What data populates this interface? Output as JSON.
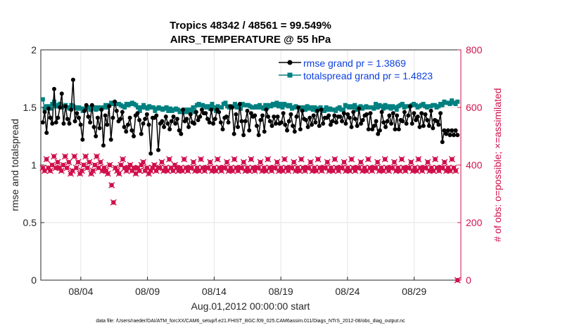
{
  "chart_data": {
    "type": "line",
    "title": "Tropics 48342 / 48561 = 99.549%",
    "subtitle": "AIRS_TEMPERATURE @ 55 hPa",
    "xlabel": "Aug.01,2012 00:00:00 start",
    "ylabel_left": "rmse and totalspread",
    "ylabel_right": "# of obs: o=possible; ×=assimilated",
    "footnote": "data file: /Users/raeder/DAI/ATM_forcXX/CAM6_setup/f.e21.FHIST_BGC.f09_025.CAM6assim.011/Diags_NTrS_2012-08/obs_diag_output.nc",
    "xlim": [
      0,
      31.5
    ],
    "ylim_left": [
      0,
      2
    ],
    "ylim_right": [
      0,
      800
    ],
    "x_ticks": [
      3,
      8,
      13,
      18,
      23,
      28
    ],
    "x_tick_labels": [
      "08/04",
      "08/09",
      "08/14",
      "08/19",
      "08/24",
      "08/29"
    ],
    "y_ticks_left": [
      0,
      0.5,
      1,
      1.5,
      2
    ],
    "y_tick_labels_left": [
      "0",
      "0.5",
      "1",
      "1.5",
      "2"
    ],
    "y_ticks_right": [
      0,
      200,
      400,
      600,
      800
    ],
    "y_tick_labels_right": [
      "0",
      "200",
      "400",
      "600",
      "800"
    ],
    "grid": true,
    "legend_position": "top-right",
    "colors": {
      "rmse": "#000000",
      "totalspread": "#008080",
      "obs": "#d0104c",
      "legend_text": "#0b3fe0",
      "right_axis": "#d0104c"
    },
    "series": [
      {
        "name": "rmse grand pr = 1.3869",
        "axis": "left",
        "values": [
          1.37,
          1.46,
          1.28,
          1.49,
          1.41,
          1.36,
          1.66,
          1.37,
          1.41,
          1.5,
          1.62,
          1.36,
          1.51,
          1.4,
          1.36,
          1.48,
          1.74,
          1.38,
          1.45,
          1.41,
          1.35,
          1.22,
          1.47,
          1.52,
          1.42,
          1.37,
          1.52,
          1.33,
          1.25,
          1.41,
          1.32,
          1.48,
          1.17,
          1.43,
          1.35,
          1.51,
          1.22,
          1.41,
          1.55,
          1.47,
          1.38,
          1.4,
          1.46,
          1.33,
          1.29,
          1.35,
          1.41,
          1.3,
          1.25,
          1.43,
          1.45,
          1.39,
          1.27,
          1.36,
          1.4,
          1.44,
          1.35,
          1.1,
          1.41,
          1.41,
          1.43,
          1.13,
          1.36,
          1.38,
          1.33,
          1.42,
          1.36,
          1.31,
          1.38,
          1.42,
          1.36,
          1.4,
          1.3,
          1.27,
          1.48,
          1.38,
          1.4,
          1.33,
          1.44,
          1.37,
          1.36,
          1.46,
          1.39,
          1.42,
          1.48,
          1.45,
          1.45,
          1.4,
          1.37,
          1.48,
          1.36,
          1.4,
          1.48,
          1.46,
          1.37,
          1.31,
          1.41,
          1.42,
          1.37,
          1.51,
          1.5,
          1.27,
          1.44,
          1.33,
          1.53,
          1.38,
          1.26,
          1.38,
          1.47,
          1.3,
          1.45,
          1.42,
          1.43,
          1.34,
          1.26,
          1.39,
          1.43,
          1.29,
          1.48,
          1.42,
          1.38,
          1.34,
          1.42,
          1.36,
          1.42,
          1.36,
          1.37,
          1.45,
          1.35,
          1.3,
          1.38,
          1.44,
          1.34,
          1.29,
          1.42,
          1.5,
          1.31,
          1.47,
          1.4,
          1.39,
          1.33,
          1.41,
          1.35,
          1.43,
          1.37,
          1.47,
          1.34,
          1.48,
          1.36,
          1.41,
          1.41,
          1.43,
          1.35,
          1.38,
          1.43,
          1.37,
          1.42,
          1.42,
          1.38,
          1.45,
          1.36,
          1.44,
          1.41,
          1.33,
          1.46,
          1.4,
          1.34,
          1.49,
          1.36,
          1.39,
          1.43,
          1.44,
          1.31,
          1.45,
          1.31,
          1.34,
          1.38,
          1.27,
          1.3,
          1.46,
          1.37,
          1.33,
          1.38,
          1.43,
          1.36,
          1.45,
          1.31,
          1.43,
          1.31,
          1.39,
          1.38,
          1.46,
          1.36,
          1.43,
          1.51,
          1.36,
          1.45,
          1.39,
          1.42,
          1.33,
          1.45,
          1.34,
          1.44,
          1.39,
          1.34,
          1.47,
          1.32,
          1.39,
          1.38,
          1.35,
          1.45,
          1.2,
          1.3,
          1.27,
          1.3,
          1.26,
          1.3,
          1.26,
          1.3,
          1.26
        ]
      },
      {
        "name": "totalspread grand pr = 1.4823",
        "axis": "left",
        "values": [
          1.57,
          1.49,
          1.51,
          1.51,
          1.49,
          1.53,
          1.55,
          1.51,
          1.52,
          1.53,
          1.5,
          1.51,
          1.52,
          1.5,
          1.49,
          1.52,
          1.51,
          1.5,
          1.49,
          1.5,
          1.49,
          1.47,
          1.49,
          1.5,
          1.5,
          1.48,
          1.49,
          1.5,
          1.48,
          1.5,
          1.49,
          1.5,
          1.5,
          1.52,
          1.5,
          1.52,
          1.54,
          1.53,
          1.53,
          1.53,
          1.53,
          1.52,
          1.51,
          1.5,
          1.53,
          1.52,
          1.53,
          1.54,
          1.53,
          1.52,
          1.5,
          1.47,
          1.5,
          1.52,
          1.5,
          1.49,
          1.51,
          1.5,
          1.5,
          1.47,
          1.49,
          1.5,
          1.49,
          1.48,
          1.49,
          1.5,
          1.47,
          1.49,
          1.47,
          1.48,
          1.49,
          1.48,
          1.46,
          1.47,
          1.46,
          1.48,
          1.46,
          1.48,
          1.47,
          1.5,
          1.46,
          1.52,
          1.53,
          1.52,
          1.52,
          1.51,
          1.5,
          1.51,
          1.49,
          1.53,
          1.5,
          1.47,
          1.51,
          1.5,
          1.5,
          1.53,
          1.54,
          1.51,
          1.5,
          1.5,
          1.51,
          1.53,
          1.5,
          1.51,
          1.49,
          1.53,
          1.52,
          1.52,
          1.52,
          1.51,
          1.5,
          1.5,
          1.51,
          1.5,
          1.52,
          1.5,
          1.49,
          1.52,
          1.5,
          1.52,
          1.51,
          1.53,
          1.52,
          1.54,
          1.51,
          1.53,
          1.5,
          1.53,
          1.52,
          1.51,
          1.52,
          1.49,
          1.5,
          1.51,
          1.5,
          1.5,
          1.49,
          1.5,
          1.48,
          1.51,
          1.49,
          1.5,
          1.48,
          1.5,
          1.47,
          1.49,
          1.5,
          1.48,
          1.47,
          1.5,
          1.48,
          1.49,
          1.48,
          1.48,
          1.47,
          1.49,
          1.5,
          1.48,
          1.48,
          1.52,
          1.51,
          1.5,
          1.51,
          1.5,
          1.52,
          1.48,
          1.5,
          1.51,
          1.49,
          1.5,
          1.51,
          1.5,
          1.5,
          1.5,
          1.49,
          1.53,
          1.5,
          1.52,
          1.51,
          1.49,
          1.52,
          1.5,
          1.51,
          1.49,
          1.51,
          1.5,
          1.48,
          1.51,
          1.52,
          1.53,
          1.5,
          1.51,
          1.51,
          1.51,
          1.52,
          1.53,
          1.52,
          1.5,
          1.51,
          1.52,
          1.53,
          1.51,
          1.5,
          1.51,
          1.51,
          1.52,
          1.52,
          1.5,
          1.51,
          1.53,
          1.52,
          1.55,
          1.54,
          1.54,
          1.53,
          1.56,
          1.54,
          1.53,
          1.55
        ]
      },
      {
        "name": "# of obs",
        "axis": "right",
        "values": [
          390,
          380,
          420,
          390,
          380,
          400,
          430,
          390,
          410,
          390,
          380,
          400,
          430,
          390,
          410,
          370,
          380,
          430,
          390,
          410,
          370,
          380,
          400,
          430,
          390,
          410,
          370,
          380,
          400,
          430,
          390,
          410,
          380,
          390,
          380,
          370,
          400,
          330,
          270,
          390,
          380,
          370,
          400,
          420,
          390,
          380,
          390,
          400,
          380,
          390,
          370,
          390,
          380,
          400,
          410,
          380,
          390,
          370,
          380,
          390,
          400,
          380,
          390,
          390,
          410,
          380,
          390,
          380,
          420,
          390,
          380,
          400,
          390,
          380,
          390,
          380,
          420,
          390,
          380,
          390,
          390,
          410,
          380,
          390,
          380,
          420,
          390,
          380,
          390,
          390,
          410,
          380,
          390,
          380,
          420,
          390,
          380,
          390,
          390,
          410,
          380,
          390,
          380,
          420,
          390,
          380,
          390,
          390,
          410,
          380,
          390,
          380,
          420,
          390,
          380,
          390,
          390,
          410,
          380,
          390,
          380,
          420,
          390,
          380,
          390,
          390,
          410,
          380,
          390,
          380,
          420,
          390,
          380,
          390,
          390,
          410,
          380,
          390,
          380,
          420,
          390,
          380,
          390,
          390,
          410,
          380,
          390,
          380,
          420,
          390,
          380,
          390,
          390,
          410,
          380,
          390,
          380,
          420,
          390,
          380,
          390,
          390,
          410,
          380,
          390,
          380,
          420,
          390,
          380,
          390,
          390,
          410,
          380,
          390,
          380,
          420,
          390,
          380,
          390,
          390,
          410,
          380,
          390,
          380,
          420,
          390,
          380,
          390,
          390,
          410,
          380,
          390,
          380,
          420,
          390,
          380,
          390,
          390,
          410,
          380,
          390,
          380,
          420,
          390,
          380,
          390,
          390,
          410,
          380,
          390,
          380,
          420,
          390,
          380,
          390,
          390,
          410,
          380,
          390,
          380,
          420,
          390,
          380,
          0
        ]
      }
    ]
  }
}
